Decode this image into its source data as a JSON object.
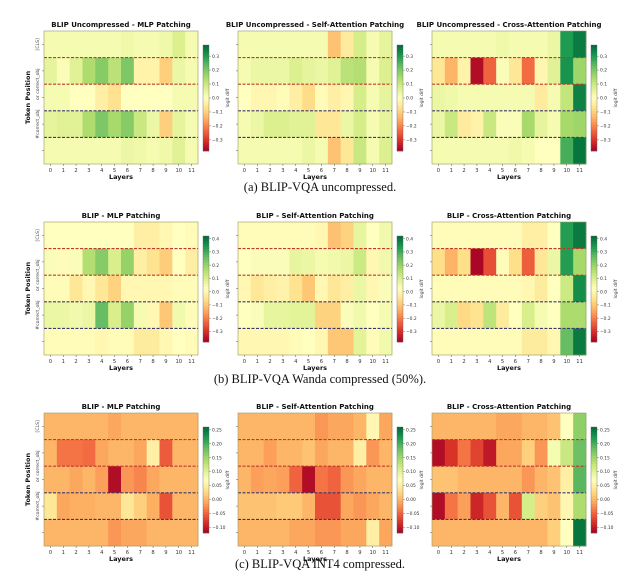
{
  "captions": [
    "(a) BLIP-VQA uncompressed.",
    "(b) BLIP-VQA Wanda compressed (50%).",
    "(c) BLIP-VQA INT4 compressed."
  ],
  "chart_data": [
    {
      "type": "heatmap",
      "group": "a",
      "title": "BLIP Uncompressed - MLP Patching",
      "xlabel": "Layers",
      "ylabel": "Token Position",
      "x": [
        "0",
        "1",
        "2",
        "3",
        "4",
        "5",
        "6",
        "7",
        "8",
        "9",
        "10",
        "11"
      ],
      "y_tick_labels": [
        "[CLS]",
        "or correct_obj",
        "",
        "#correct_obj",
        ""
      ],
      "colorbar": {
        "label": "logit diff",
        "cmap": "RdYlGn",
        "range": [
          -0.38,
          0.38
        ],
        "ticks": [
          0.3,
          0.2,
          0.1,
          0.0,
          -0.1,
          -0.2,
          -0.3
        ],
        "tick_labels": [
          "0.3",
          "0.2",
          "0.1",
          "0.0",
          "−0.1",
          "−0.2",
          "−0.3"
        ]
      },
      "values": [
        [
          0.02,
          0.02,
          0.02,
          0.02,
          0.02,
          0.02,
          0.03,
          0.02,
          0.02,
          0.03,
          0.07,
          0.02
        ],
        [
          0.05,
          0.01,
          0.06,
          0.14,
          0.19,
          0.12,
          0.2,
          -0.03,
          -0.03,
          -0.1,
          0.04,
          0.02
        ],
        [
          0.02,
          0.02,
          0.0,
          0.0,
          -0.04,
          -0.07,
          0.0,
          0.0,
          0.0,
          0.0,
          0.02,
          0.02
        ],
        [
          0.05,
          0.06,
          0.06,
          0.14,
          0.2,
          0.15,
          0.19,
          0.1,
          0.04,
          -0.1,
          0.05,
          0.02
        ],
        [
          0.02,
          0.02,
          0.02,
          0.02,
          0.02,
          0.02,
          0.04,
          0.03,
          0.02,
          0.03,
          0.06,
          0.02
        ]
      ]
    },
    {
      "type": "heatmap",
      "group": "a",
      "title": "BLIP Uncompressed - Self-Attention Patching",
      "xlabel": "Layers",
      "ylabel": "",
      "x": [
        "0",
        "1",
        "2",
        "3",
        "4",
        "5",
        "6",
        "7",
        "8",
        "9",
        "10",
        "11"
      ],
      "y_tick_labels": [
        "",
        "",
        "",
        "",
        ""
      ],
      "colorbar": {
        "label": "logit diff",
        "cmap": "RdYlGn",
        "range": [
          -0.38,
          0.38
        ],
        "ticks": [
          0.3,
          0.2,
          0.1,
          0.0,
          -0.1,
          -0.2,
          -0.3
        ],
        "tick_labels": [
          "0.3",
          "0.2",
          "0.1",
          "0.0",
          "−0.1",
          "−0.2",
          "−0.3"
        ]
      },
      "values": [
        [
          0.02,
          0.02,
          0.02,
          0.02,
          0.02,
          0.02,
          0.02,
          -0.12,
          -0.05,
          0.08,
          0.02,
          0.05
        ],
        [
          0.02,
          0.04,
          0.04,
          0.04,
          0.07,
          0.05,
          0.04,
          0.06,
          0.12,
          0.13,
          0.02,
          0.07
        ],
        [
          0.0,
          -0.02,
          -0.02,
          -0.01,
          -0.04,
          -0.08,
          -0.01,
          -0.04,
          -0.02,
          0.08,
          0.02,
          0.05
        ],
        [
          0.02,
          0.04,
          0.07,
          0.07,
          0.06,
          0.06,
          -0.06,
          -0.06,
          0.04,
          0.08,
          0.02,
          0.05
        ],
        [
          0.02,
          0.02,
          0.02,
          0.02,
          0.02,
          0.04,
          0.02,
          -0.12,
          -0.06,
          0.1,
          0.02,
          0.07
        ]
      ]
    },
    {
      "type": "heatmap",
      "group": "a",
      "title": "BLIP Uncompressed - Cross-Attention Patching",
      "xlabel": "Layers",
      "ylabel": "",
      "x": [
        "0",
        "1",
        "2",
        "3",
        "4",
        "5",
        "6",
        "7",
        "8",
        "9",
        "10",
        "11"
      ],
      "y_tick_labels": [
        "",
        "",
        "",
        "",
        ""
      ],
      "colorbar": {
        "label": "logit diff",
        "cmap": "RdYlGn",
        "range": [
          -0.38,
          0.38
        ],
        "ticks": [
          0.3,
          0.2,
          0.1,
          0.0,
          -0.1,
          -0.2,
          -0.3
        ],
        "tick_labels": [
          "0.3",
          "0.2",
          "0.1",
          "0.0",
          "−0.1",
          "−0.2",
          "−0.3"
        ]
      },
      "values": [
        [
          0.02,
          0.02,
          0.02,
          0.02,
          0.02,
          0.03,
          0.02,
          0.02,
          0.02,
          0.04,
          0.3,
          0.35
        ],
        [
          -0.06,
          -0.14,
          -0.03,
          -0.36,
          -0.24,
          0.01,
          -0.06,
          -0.23,
          -0.02,
          0.06,
          0.31,
          0.16
        ],
        [
          0.04,
          0.03,
          0.02,
          0.02,
          0.02,
          0.02,
          0.02,
          0.02,
          -0.05,
          0.02,
          0.11,
          0.34
        ],
        [
          0.04,
          0.1,
          -0.05,
          -0.03,
          0.1,
          0.01,
          0.01,
          0.15,
          0.05,
          0.02,
          0.15,
          0.16
        ],
        [
          0.02,
          0.02,
          0.02,
          0.02,
          0.02,
          0.02,
          0.03,
          0.02,
          0.0,
          0.0,
          0.26,
          0.36
        ]
      ]
    },
    {
      "type": "heatmap",
      "group": "b",
      "title": "BLIP - MLP Patching",
      "xlabel": "Layers",
      "ylabel": "Token Position",
      "x": [
        "0",
        "1",
        "2",
        "3",
        "4",
        "5",
        "6",
        "7",
        "8",
        "9",
        "10",
        "11"
      ],
      "y_tick_labels": [
        "[CLS]",
        "or correct_obj",
        "",
        "#correct_obj",
        ""
      ],
      "colorbar": {
        "label": "logit diff",
        "cmap": "RdYlGn",
        "range": [
          -0.38,
          0.42
        ],
        "ticks": [
          0.4,
          0.3,
          0.2,
          0.1,
          0.0,
          -0.1,
          -0.2,
          -0.3
        ],
        "tick_labels": [
          "0.4",
          "0.3",
          "0.2",
          "0.1",
          "0.0",
          "−0.1",
          "−0.2",
          "−0.3"
        ]
      },
      "values": [
        [
          0.02,
          0.02,
          0.02,
          0.02,
          0.02,
          0.02,
          0.02,
          -0.02,
          -0.02,
          0.0,
          0.02,
          0.01
        ],
        [
          0.03,
          0.01,
          0.03,
          0.16,
          0.22,
          0.1,
          0.2,
          -0.02,
          -0.05,
          -0.09,
          0.02,
          -0.02
        ],
        [
          0.01,
          0.01,
          -0.04,
          0.0,
          -0.04,
          -0.08,
          0.0,
          0.0,
          0.0,
          0.0,
          0.01,
          0.01
        ],
        [
          0.06,
          0.06,
          0.05,
          0.06,
          0.26,
          0.1,
          0.2,
          0.04,
          0.0,
          -0.1,
          0.05,
          0.01
        ],
        [
          0.01,
          0.01,
          0.01,
          0.01,
          0.0,
          0.01,
          0.01,
          -0.03,
          -0.03,
          0.0,
          0.02,
          0.01
        ]
      ]
    },
    {
      "type": "heatmap",
      "group": "b",
      "title": "BLIP - Self-Attention Patching",
      "xlabel": "Layers",
      "ylabel": "",
      "x": [
        "0",
        "1",
        "2",
        "3",
        "4",
        "5",
        "6",
        "7",
        "8",
        "9",
        "10",
        "11"
      ],
      "y_tick_labels": [
        "",
        "",
        "",
        "",
        ""
      ],
      "colorbar": {
        "label": "logit diff",
        "cmap": "RdYlGn",
        "range": [
          -0.38,
          0.42
        ],
        "ticks": [
          0.4,
          0.3,
          0.2,
          0.1,
          0.0,
          -0.1,
          -0.2,
          -0.3
        ],
        "tick_labels": [
          "0.4",
          "0.3",
          "0.2",
          "0.1",
          "0.0",
          "−0.1",
          "−0.2",
          "−0.3"
        ]
      },
      "values": [
        [
          0.01,
          0.01,
          0.01,
          0.01,
          0.01,
          0.01,
          0.0,
          -0.11,
          -0.08,
          0.07,
          0.02,
          0.05
        ],
        [
          0.02,
          0.03,
          0.03,
          0.03,
          0.07,
          0.06,
          0.04,
          0.05,
          0.06,
          0.12,
          0.0,
          0.05
        ],
        [
          0.0,
          -0.04,
          -0.02,
          -0.01,
          -0.05,
          -0.1,
          0.0,
          -0.04,
          -0.02,
          0.06,
          0.0,
          0.03
        ],
        [
          0.02,
          0.03,
          0.07,
          0.07,
          0.08,
          0.08,
          -0.08,
          -0.08,
          0.03,
          0.05,
          0.02,
          0.04
        ],
        [
          0.0,
          0.0,
          0.0,
          0.0,
          0.01,
          0.02,
          0.0,
          -0.1,
          -0.1,
          0.08,
          0.01,
          0.05
        ]
      ]
    },
    {
      "type": "heatmap",
      "group": "b",
      "title": "BLIP - Cross-Attention Patching",
      "xlabel": "Layers",
      "ylabel": "",
      "x": [
        "0",
        "1",
        "2",
        "3",
        "4",
        "5",
        "6",
        "7",
        "8",
        "9",
        "10",
        "11"
      ],
      "y_tick_labels": [
        "",
        "",
        "",
        "",
        ""
      ],
      "colorbar": {
        "label": "logit diff",
        "cmap": "RdYlGn",
        "range": [
          -0.38,
          0.42
        ],
        "ticks": [
          0.4,
          0.3,
          0.2,
          0.1,
          0.0,
          -0.1,
          -0.2,
          -0.3
        ],
        "tick_labels": [
          "0.4",
          "0.3",
          "0.2",
          "0.1",
          "0.0",
          "−0.1",
          "−0.2",
          "−0.3"
        ]
      },
      "values": [
        [
          0.01,
          0.01,
          0.01,
          0.01,
          0.01,
          0.01,
          0.01,
          -0.02,
          -0.02,
          0.02,
          0.33,
          0.39
        ],
        [
          -0.06,
          -0.13,
          -0.06,
          -0.37,
          -0.26,
          0.01,
          -0.06,
          -0.24,
          -0.04,
          0.06,
          0.33,
          0.18
        ],
        [
          0.01,
          0.01,
          0.01,
          0.01,
          0.01,
          0.01,
          0.01,
          0.0,
          -0.03,
          0.02,
          0.12,
          0.36
        ],
        [
          0.06,
          0.1,
          -0.07,
          -0.05,
          0.14,
          -0.03,
          0.02,
          0.1,
          0.04,
          0.02,
          0.17,
          0.17
        ],
        [
          0.01,
          0.01,
          0.01,
          0.01,
          0.01,
          0.01,
          0.01,
          -0.03,
          -0.03,
          0.0,
          0.26,
          0.39
        ]
      ]
    },
    {
      "type": "heatmap",
      "group": "c",
      "title": "BLIP - MLP Patching",
      "xlabel": "Layers",
      "ylabel": "Token Position",
      "x": [
        "0",
        "1",
        "2",
        "3",
        "4",
        "5",
        "6",
        "7",
        "8",
        "9",
        "10",
        "11"
      ],
      "y_tick_labels": [
        "[CLS]",
        "or correct_obj",
        "",
        "#correct_obj",
        ""
      ],
      "colorbar": {
        "label": "logit diff",
        "cmap": "RdYlGn",
        "range": [
          -0.12,
          0.26
        ],
        "ticks": [
          0.25,
          0.2,
          0.15,
          0.1,
          0.05,
          0.0,
          -0.05,
          -0.1
        ],
        "tick_labels": [
          "0.25",
          "0.20",
          "0.15",
          "0.10",
          "0.05",
          "0.00",
          "−0.05",
          "−0.10"
        ]
      },
      "values": [
        [
          0.0,
          0.0,
          0.0,
          0.0,
          0.0,
          -0.01,
          0.0,
          0.0,
          0.0,
          0.0,
          0.0,
          0.0
        ],
        [
          0.0,
          -0.04,
          -0.04,
          -0.045,
          -0.01,
          0.0,
          0.0,
          -0.01,
          0.05,
          -0.055,
          0.0,
          0.0
        ],
        [
          0.0,
          0.0,
          -0.01,
          0.0,
          -0.015,
          -0.11,
          -0.02,
          -0.03,
          -0.01,
          0.0,
          0.0,
          0.0
        ],
        [
          0.04,
          -0.01,
          -0.005,
          -0.005,
          0.0,
          0.0,
          0.04,
          0.02,
          -0.005,
          -0.06,
          0.0,
          0.0
        ],
        [
          0.0,
          0.0,
          0.0,
          0.0,
          0.0,
          -0.02,
          -0.01,
          -0.01,
          0.0,
          0.0,
          0.0,
          0.0
        ]
      ]
    },
    {
      "type": "heatmap",
      "group": "c",
      "title": "BLIP - Self-Attention Patching",
      "xlabel": "Layers",
      "ylabel": "",
      "x": [
        "0",
        "1",
        "2",
        "3",
        "4",
        "5",
        "6",
        "7",
        "8",
        "9",
        "10",
        "11"
      ],
      "y_tick_labels": [
        "",
        "",
        "",
        "",
        ""
      ],
      "colorbar": {
        "label": "logit diff",
        "cmap": "RdYlGn",
        "range": [
          -0.12,
          0.26
        ],
        "ticks": [
          0.25,
          0.2,
          0.15,
          0.1,
          0.05,
          0.0,
          -0.05,
          -0.1
        ],
        "tick_labels": [
          "0.25",
          "0.20",
          "0.15",
          "0.10",
          "0.05",
          "0.00",
          "−0.05",
          "−0.10"
        ]
      },
      "values": [
        [
          0.0,
          0.0,
          0.0,
          0.0,
          0.0,
          0.0,
          -0.02,
          -0.01,
          -0.01,
          0.0,
          0.06,
          -0.01
        ],
        [
          0.0,
          0.0,
          -0.015,
          0.0,
          0.0,
          0.01,
          -0.01,
          0.0,
          0.0,
          0.05,
          -0.02,
          0.0
        ],
        [
          0.0,
          -0.015,
          -0.01,
          -0.015,
          -0.05,
          -0.11,
          -0.04,
          -0.05,
          -0.02,
          -0.01,
          0.0,
          0.0
        ],
        [
          0.01,
          0.01,
          0.01,
          0.015,
          0.015,
          0.0,
          -0.06,
          -0.06,
          -0.01,
          -0.02,
          -0.01,
          0.0
        ],
        [
          0.0,
          0.0,
          0.0,
          0.0,
          -0.01,
          -0.01,
          -0.02,
          -0.02,
          -0.01,
          -0.01,
          0.05,
          -0.01
        ]
      ]
    },
    {
      "type": "heatmap",
      "group": "c",
      "title": "BLIP - Cross-Attention Patching",
      "xlabel": "Layers",
      "ylabel": "",
      "x": [
        "0",
        "1",
        "2",
        "3",
        "4",
        "5",
        "6",
        "7",
        "8",
        "9",
        "10",
        "11"
      ],
      "y_tick_labels": [
        "",
        "",
        "",
        "",
        ""
      ],
      "colorbar": {
        "label": "logit diff",
        "cmap": "RdYlGn",
        "range": [
          -0.12,
          0.26
        ],
        "ticks": [
          0.25,
          0.2,
          0.15,
          0.1,
          0.05,
          0.0,
          -0.05,
          -0.1
        ],
        "tick_labels": [
          "0.25",
          "0.20",
          "0.15",
          "0.10",
          "0.05",
          "0.00",
          "−0.05",
          "−0.10"
        ]
      },
      "values": [
        [
          0.0,
          0.0,
          0.0,
          0.0,
          0.0,
          -0.01,
          -0.01,
          0.0,
          0.0,
          0.01,
          0.07,
          0.16
        ],
        [
          -0.11,
          -0.08,
          -0.04,
          -0.07,
          -0.1,
          -0.01,
          -0.01,
          0.02,
          -0.02,
          0.08,
          0.12,
          0.18
        ],
        [
          0.01,
          0.01,
          0.0,
          0.0,
          0.0,
          0.0,
          0.0,
          -0.02,
          0.0,
          0.01,
          0.05,
          0.19
        ],
        [
          -0.11,
          -0.04,
          -0.015,
          -0.09,
          -0.06,
          0.0,
          -0.06,
          0.11,
          0.02,
          0.01,
          0.06,
          0.14
        ],
        [
          0.0,
          0.0,
          0.0,
          0.0,
          0.0,
          0.0,
          0.0,
          0.0,
          0.0,
          0.02,
          0.07,
          0.25
        ]
      ]
    }
  ]
}
